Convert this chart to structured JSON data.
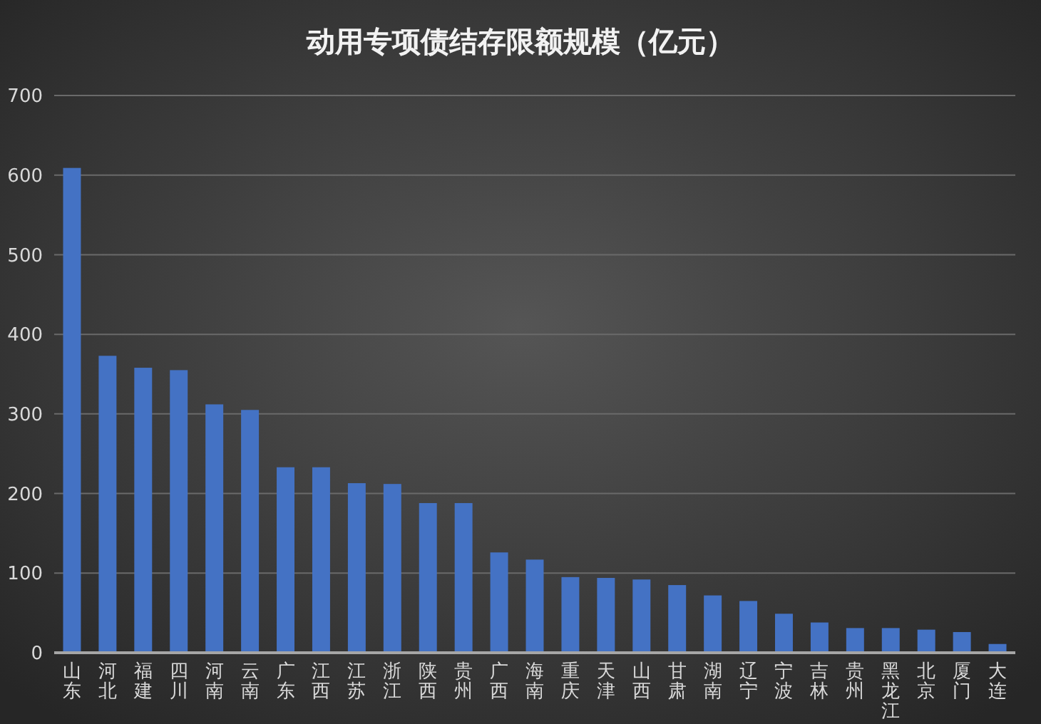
{
  "chart_data": {
    "type": "bar",
    "title": "动用专项债结存限额规模（亿元）",
    "categories": [
      "山东",
      "河北",
      "福建",
      "四川",
      "河南",
      "云南",
      "广东",
      "江西",
      "江苏",
      "浙江",
      "陕西",
      "贵州",
      "广西",
      "海南",
      "重庆",
      "天津",
      "山西",
      "甘肃",
      "湖南",
      "辽宁",
      "宁波",
      "吉林",
      "贵州",
      "黑龙江",
      "北京",
      "厦门",
      "大连"
    ],
    "values": [
      609,
      373,
      358,
      355,
      312,
      305,
      233,
      233,
      213,
      212,
      188,
      188,
      126,
      117,
      95,
      94,
      92,
      85,
      72,
      65,
      49,
      38,
      31,
      31,
      29,
      26,
      11
    ],
    "color": "#4472c4",
    "ylim": [
      0,
      700
    ],
    "yticks": [
      0,
      100,
      200,
      300,
      400,
      500,
      600,
      700
    ],
    "grid": "y"
  }
}
